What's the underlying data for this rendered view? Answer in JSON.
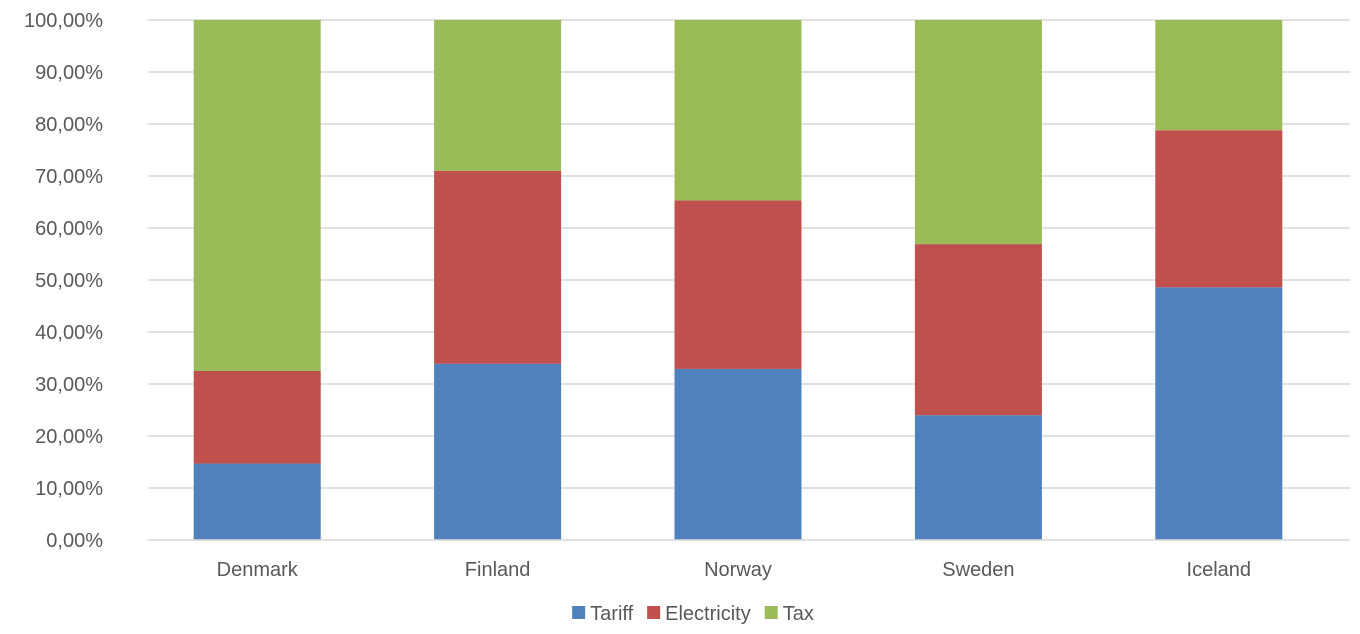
{
  "chart_data": {
    "type": "bar",
    "stacked": true,
    "categories": [
      "Denmark",
      "Finland",
      "Norway",
      "Sweden",
      "Iceland"
    ],
    "series": [
      {
        "name": "Tariff",
        "color": "#4F81BD",
        "values": [
          14.7,
          33.9,
          32.9,
          24.0,
          48.6
        ]
      },
      {
        "name": "Electricity",
        "color": "#C0504D",
        "values": [
          17.8,
          37.1,
          32.4,
          32.9,
          30.2
        ]
      },
      {
        "name": "Tax",
        "color": "#9BBB59",
        "values": [
          67.5,
          29.0,
          34.7,
          43.1,
          21.2
        ]
      }
    ],
    "y_ticks": [
      "0,00%",
      "10,00%",
      "20,00%",
      "30,00%",
      "40,00%",
      "50,00%",
      "60,00%",
      "70,00%",
      "80,00%",
      "90,00%",
      "100,00%"
    ],
    "ylim": [
      0,
      100
    ],
    "grid": true,
    "legend_position": "bottom",
    "title": "",
    "xlabel": "",
    "ylabel": ""
  }
}
